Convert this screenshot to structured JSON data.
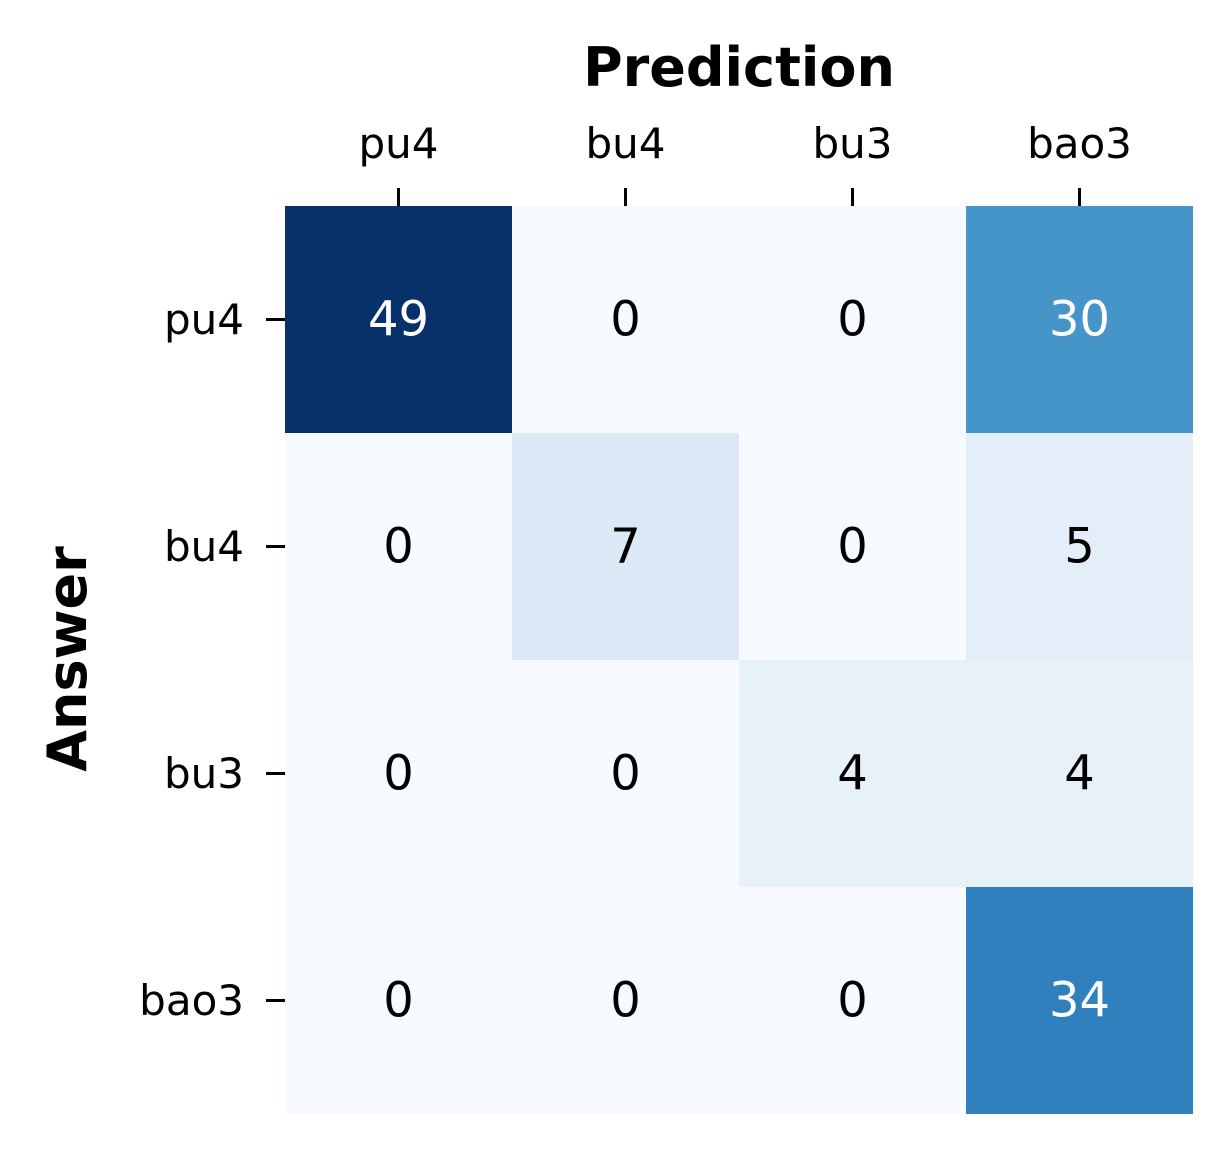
{
  "chart_data": {
    "type": "heatmap",
    "title": "",
    "xlabel": "Prediction",
    "ylabel": "Answer",
    "x_categories": [
      "pu4",
      "bu4",
      "bu3",
      "bao3"
    ],
    "y_categories": [
      "pu4",
      "bu4",
      "bu3",
      "bao3"
    ],
    "values": [
      [
        49,
        0,
        0,
        30
      ],
      [
        0,
        7,
        0,
        5
      ],
      [
        0,
        0,
        4,
        4
      ],
      [
        0,
        0,
        0,
        34
      ]
    ],
    "x_axis_position": "top",
    "colormap": "Blues",
    "colorbar": false,
    "grid": false,
    "value_range": [
      0,
      49
    ],
    "colors": {
      "low": "#f7fbff",
      "high": "#08306b",
      "text_dark": "#000000",
      "text_light": "#ffffff"
    }
  }
}
